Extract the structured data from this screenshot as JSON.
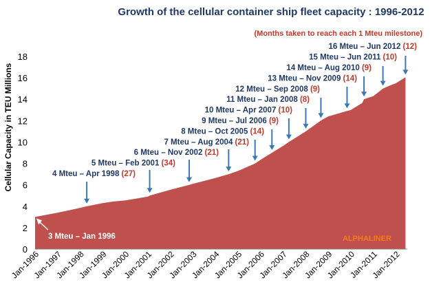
{
  "chart_data": {
    "type": "area",
    "title": "Growth of the cellular container ship fleet capacity : 1996-2012",
    "subtitle": "(Months taken to reach each 1 Mteu milestone)",
    "ylabel": "Cellular Capacity in TEU Millions",
    "xlabel": "",
    "ylim": [
      0,
      18
    ],
    "yticks": [
      "0",
      "2",
      "4",
      "6",
      "8",
      "10",
      "12",
      "14",
      "16",
      "18"
    ],
    "xticks": [
      "Jan-1996",
      "Jan-1997",
      "Jan-1998",
      "Jan-1999",
      "Jan-2000",
      "Jan-2001",
      "Jan-2002",
      "Jan-2003",
      "Jan-2004",
      "Jan-2005",
      "Jan-2006",
      "Jan-2007",
      "Jan-2008",
      "Jan-2009",
      "Jan-2010",
      "Jan-2011",
      "Jan-2012"
    ],
    "area_color": "#c0504d",
    "x": [
      1996.0,
      1997.0,
      1998.0,
      1998.29,
      1999.0,
      1999.5,
      2000.0,
      2001.0,
      2001.08,
      2002.0,
      2002.83,
      2003.0,
      2004.0,
      2004.58,
      2005.0,
      2005.75,
      2006.0,
      2006.5,
      2007.0,
      2007.25,
      2008.0,
      2008.67,
      2009.0,
      2009.83,
      2010.0,
      2010.5,
      2010.58,
      2011.0,
      2011.42,
      2011.75,
      2012.0,
      2012.42
    ],
    "values": [
      3.0,
      3.4,
      3.85,
      4.0,
      4.3,
      4.45,
      4.55,
      4.9,
      5.0,
      5.55,
      6.0,
      6.1,
      6.65,
      7.0,
      7.3,
      8.0,
      8.35,
      9.0,
      9.65,
      10.0,
      11.0,
      12.0,
      12.4,
      12.9,
      13.0,
      13.65,
      14.0,
      14.3,
      15.0,
      15.3,
      15.5,
      16.05
    ],
    "milestones": [
      {
        "label": "4 Mteu – Apr 1998",
        "months": "(27)"
      },
      {
        "label": "5 Mteu – Feb 2001",
        "months": "(34)"
      },
      {
        "label": "6 Mteu – Nov 2002",
        "months": "(21)"
      },
      {
        "label": "7 Mteu – Aug 2004",
        "months": "(21)"
      },
      {
        "label": "8 Mteu – Oct 2005",
        "months": "(14)"
      },
      {
        "label": "9 Mteu – Jul 2006",
        "months": "(9)"
      },
      {
        "label": "10 Mteu – Apr 2007",
        "months": "(10)"
      },
      {
        "label": "11 Mteu – Jan 2008",
        "months": "(8)"
      },
      {
        "label": "12 Mteu – Sep 2008",
        "months": "(9)"
      },
      {
        "label": "13 Mteu – Nov 2009",
        "months": "(14)"
      },
      {
        "label": "14 Mteu – Aug 2010",
        "months": "(9)"
      },
      {
        "label": "15 Mteu – Jun 2011",
        "months": "(10)"
      },
      {
        "label": "16 Mteu – Jun 2012",
        "months": "(12)"
      }
    ],
    "start_label": "3 Mteu – Jan 1996",
    "watermark": "ALPHALINER"
  }
}
